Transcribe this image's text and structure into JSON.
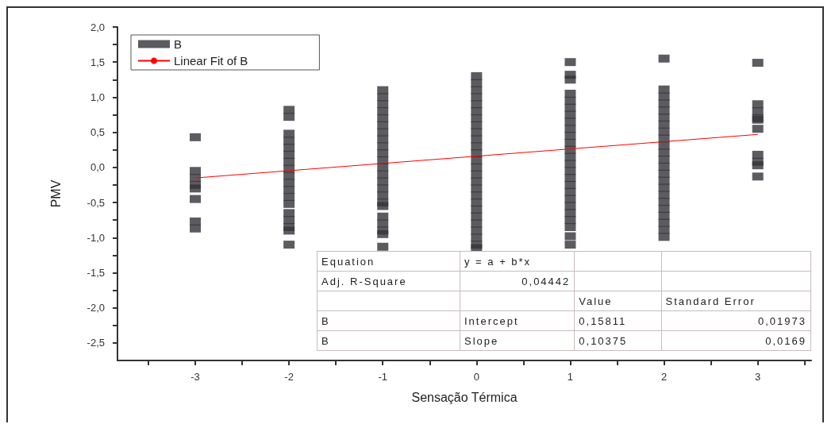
{
  "chart_data": {
    "type": "scatter",
    "xlabel": "Sensação Térmica",
    "ylabel": "PMV",
    "legend": "top left",
    "grid": false,
    "xlim": [
      -3.83,
      3.57
    ],
    "xticks": [
      {
        "value": -3.5,
        "label": null
      },
      -3,
      {
        "value": -2.5,
        "label": null
      },
      -2,
      {
        "value": -1.5,
        "label": null
      },
      -1,
      {
        "value": -0.5,
        "label": null
      },
      0,
      {
        "value": 0.5,
        "label": null
      },
      1,
      {
        "value": 1.5,
        "label": null
      },
      2,
      {
        "value": 2.5,
        "label": null
      },
      3,
      {
        "value": 3.5,
        "label": null
      }
    ],
    "ylim": [
      -2.75,
      2.0
    ],
    "yticks": [
      {
        "value": -2.5,
        "label": "-2,5"
      },
      {
        "value": -2.25,
        "label": null
      },
      {
        "value": -2.0,
        "label": "-2,0"
      },
      {
        "value": -1.75,
        "label": null
      },
      {
        "value": -1.5,
        "label": "-1,5"
      },
      {
        "value": -1.25,
        "label": null
      },
      {
        "value": -1.0,
        "label": "-1,0"
      },
      {
        "value": -0.75,
        "label": null
      },
      {
        "value": -0.5,
        "label": "-0,5"
      },
      {
        "value": -0.25,
        "label": null
      },
      {
        "value": 0,
        "label": "0,0"
      },
      {
        "value": 0.25,
        "label": null
      },
      {
        "value": 0.5,
        "label": "0,5"
      },
      {
        "value": 0.75,
        "label": null
      },
      {
        "value": 1.0,
        "label": "1,0"
      },
      {
        "value": 1.25,
        "label": null
      },
      {
        "value": 1.5,
        "label": "1,5"
      },
      {
        "value": 1.75,
        "label": null
      },
      {
        "value": 2.0,
        "label": "2,0"
      }
    ],
    "series": [
      {
        "name": "B",
        "type": "scatter",
        "marker": "square",
        "color": "#333338",
        "x": [
          -3,
          -3,
          -3,
          -3,
          -3,
          -3,
          -3,
          -3,
          -2,
          -2,
          -2,
          -2,
          -2,
          -2,
          -2,
          -2,
          -2,
          -2,
          -2,
          -2,
          -2,
          -2,
          -2,
          -2,
          -2,
          -2,
          -1,
          -1,
          -1,
          -1,
          -1,
          -1,
          -1,
          -1,
          -1,
          -1,
          -1,
          -1,
          -1,
          -1,
          -1,
          -1,
          -1,
          -1,
          -1,
          -1,
          -1,
          -1,
          -1,
          0,
          0,
          0,
          0,
          0,
          0,
          0,
          0,
          0,
          0,
          0,
          0,
          0,
          0,
          0,
          0,
          0,
          0,
          0,
          0,
          0,
          0,
          0,
          0,
          0,
          0,
          1,
          1,
          1,
          1,
          1,
          1,
          1,
          1,
          1,
          1,
          1,
          1,
          1,
          1,
          1,
          1,
          1,
          1,
          1,
          1,
          1,
          1,
          1,
          1,
          1,
          2,
          2,
          2,
          2,
          2,
          2,
          2,
          2,
          2,
          2,
          2,
          2,
          2,
          2,
          2,
          2,
          2,
          2,
          2,
          2,
          2,
          2,
          2,
          3,
          3,
          3,
          3,
          3,
          3,
          3,
          3,
          3,
          3
        ],
        "values": [
          0.43,
          -0.05,
          -0.15,
          -0.25,
          -0.3,
          -0.45,
          -0.77,
          -0.87,
          0.82,
          0.72,
          0.48,
          0.38,
          0.28,
          0.18,
          0.08,
          -0.02,
          -0.12,
          -0.22,
          -0.32,
          -0.42,
          -0.52,
          -0.65,
          -0.75,
          -0.85,
          -0.9,
          -1.1,
          1.1,
          1.0,
          0.9,
          0.8,
          0.7,
          0.6,
          0.5,
          0.4,
          0.3,
          0.2,
          0.1,
          0.0,
          -0.1,
          -0.2,
          -0.3,
          -0.4,
          -0.5,
          -0.55,
          -0.7,
          -0.8,
          -0.9,
          -0.95,
          -1.13,
          1.3,
          1.2,
          1.1,
          1.0,
          0.9,
          0.8,
          0.7,
          0.6,
          0.5,
          0.4,
          0.3,
          0.2,
          0.1,
          0.0,
          -0.1,
          -0.2,
          -0.3,
          -0.4,
          -0.5,
          -0.6,
          -0.7,
          -0.8,
          -0.9,
          -1.0,
          -1.1,
          -1.15,
          1.5,
          1.32,
          1.25,
          1.05,
          0.95,
          0.85,
          0.75,
          0.65,
          0.55,
          0.45,
          0.35,
          0.25,
          0.15,
          0.05,
          -0.05,
          -0.15,
          -0.25,
          -0.35,
          -0.45,
          -0.55,
          -0.65,
          -0.75,
          -0.85,
          -0.98,
          -1.1,
          1.55,
          1.11,
          1.01,
          0.91,
          0.81,
          0.71,
          0.61,
          0.51,
          0.41,
          0.31,
          0.21,
          0.11,
          0.01,
          -0.09,
          -0.19,
          -0.29,
          -0.39,
          -0.49,
          -0.59,
          -0.69,
          -0.79,
          -0.89,
          -0.99,
          1.49,
          0.9,
          0.8,
          0.7,
          0.68,
          0.55,
          0.18,
          0.08,
          0.03,
          -0.13
        ]
      },
      {
        "name": "Linear Fit of B",
        "type": "line",
        "marker": "none",
        "color": "#ff0000",
        "x": [
          -3,
          3
        ],
        "values": [
          -0.15,
          0.47
        ]
      }
    ],
    "annotations": [
      "Equation\ty = a + b*x\t\t",
      "Adj. R-Square\t0,04442\t\t",
      "\t\tValue\tStandard Error",
      "B\tIntercept\t0,15811\t0,01973",
      "B\tSlope\t0,10375\t0,0169"
    ]
  }
}
